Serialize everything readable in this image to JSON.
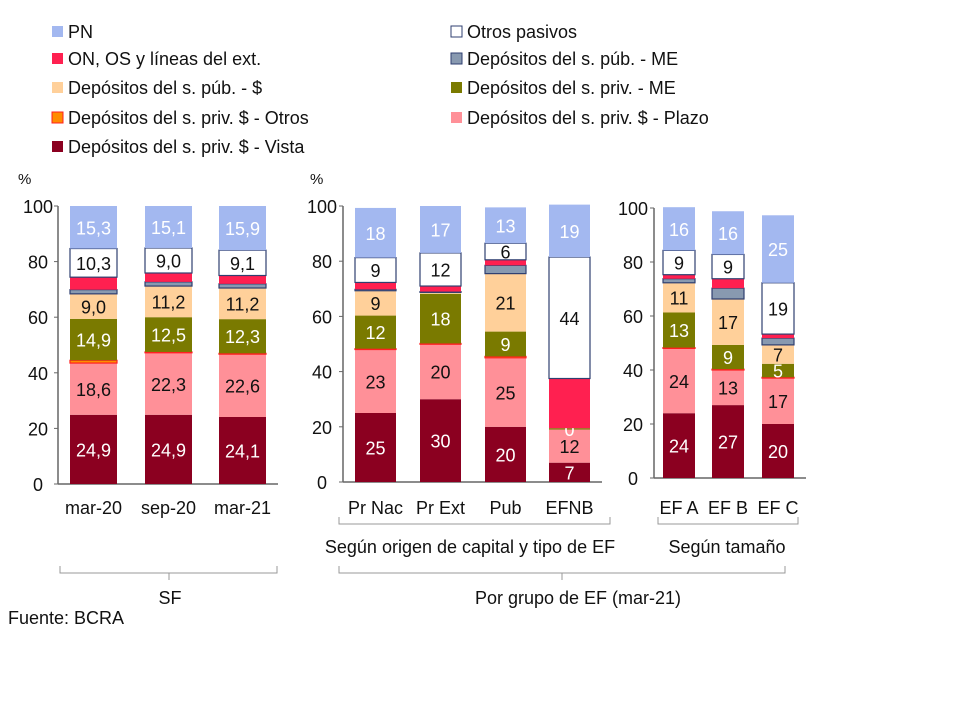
{
  "legend": [
    {
      "key": "pn",
      "label": "PN",
      "color": "#a3b8f0"
    },
    {
      "key": "otros_pasivos",
      "label": "Otros pasivos",
      "color": "#ffffff",
      "border": "#2f3f70"
    },
    {
      "key": "on",
      "label": "ON, OS y líneas del ext.",
      "color": "#ff2050"
    },
    {
      "key": "pub_me",
      "label": "Depósitos del s. púb. - ME",
      "color": "#8899b0",
      "border": "#2f3f70"
    },
    {
      "key": "pub_ars",
      "label": "Depósitos del s. púb. - $",
      "color": "#ffd09a"
    },
    {
      "key": "priv_me",
      "label": "Depósitos del s. priv. - ME",
      "color": "#7a7a00"
    },
    {
      "key": "priv_otros",
      "label": "Depósitos del s. priv. $ - Otros",
      "color": "#ff8c00",
      "border": "#ff2020"
    },
    {
      "key": "priv_plazo",
      "label": "Depósitos del s. priv. $ - Plazo",
      "color": "#ff9098"
    },
    {
      "key": "priv_vista",
      "label": "Depósitos del s. priv. $ - Vista",
      "color": "#8b0020"
    }
  ],
  "chart_data": [
    {
      "type": "bar",
      "stacked": true,
      "ylabel": "%",
      "ylim": [
        0,
        100
      ],
      "yticks": [
        0,
        20,
        40,
        60,
        80,
        100
      ],
      "stack_order": [
        "priv_vista",
        "priv_plazo",
        "priv_otros",
        "priv_me",
        "pub_ars",
        "pub_me",
        "on",
        "otros_pasivos",
        "pn"
      ],
      "categories": [
        "mar-20",
        "sep-20",
        "mar-21"
      ],
      "values": [
        [
          24.9,
          18.6,
          1.0,
          14.9,
          9.0,
          1.5,
          4.5,
          10.3,
          15.3
        ],
        [
          24.9,
          22.3,
          0.3,
          12.5,
          11.2,
          1.5,
          3.2,
          9.0,
          15.1
        ],
        [
          24.1,
          22.6,
          0.3,
          12.3,
          11.2,
          1.5,
          3.0,
          9.1,
          15.9
        ]
      ],
      "labels": [
        [
          "24,9",
          "18,6",
          null,
          "14,9",
          "9,0",
          null,
          null,
          "10,3",
          "15,3"
        ],
        [
          "24,9",
          "22,3",
          null,
          "12,5",
          "11,2",
          null,
          null,
          "9,0",
          "15,1"
        ],
        [
          "24,1",
          "22,6",
          null,
          "12,3",
          "11,2",
          null,
          null,
          "9,1",
          "15,9"
        ]
      ],
      "group_label": "SF"
    },
    {
      "type": "bar",
      "stacked": true,
      "ylabel": "%",
      "ylim": [
        0,
        100
      ],
      "yticks": [
        0,
        20,
        40,
        60,
        80,
        100
      ],
      "categories": [
        "Pr Nac",
        "Pr Ext",
        "Pub",
        "EFNB"
      ],
      "values": [
        [
          25,
          23,
          0.3,
          12,
          9,
          0.5,
          2.5,
          9,
          18
        ],
        [
          30,
          20,
          0.2,
          18,
          0.5,
          0.3,
          2,
          12,
          17
        ],
        [
          20,
          25,
          0.5,
          9,
          21,
          3,
          2,
          6,
          13
        ],
        [
          7,
          12,
          0,
          0.5,
          0,
          0,
          18,
          44,
          19
        ]
      ],
      "labels": [
        [
          "25",
          "23",
          null,
          "12",
          "9",
          null,
          null,
          "9",
          "18"
        ],
        [
          "30",
          "20",
          null,
          "18",
          null,
          null,
          null,
          "12",
          "17"
        ],
        [
          "20",
          "25",
          null,
          "9",
          "21",
          null,
          null,
          "6",
          "13"
        ],
        [
          "7",
          "12",
          null,
          "0",
          null,
          null,
          null,
          "44",
          "19"
        ]
      ],
      "sub_label": "Según origen de capital y tipo de EF"
    },
    {
      "type": "bar",
      "stacked": true,
      "ylim": [
        0,
        100
      ],
      "yticks": [
        0,
        20,
        40,
        60,
        80,
        100
      ],
      "categories": [
        "EF A",
        "EF B",
        "EF C"
      ],
      "values": [
        [
          24,
          24,
          0.3,
          13,
          11,
          1.5,
          1.5,
          9,
          16
        ],
        [
          27,
          13,
          0.3,
          9,
          17,
          4,
          3.5,
          9,
          16
        ],
        [
          20,
          17,
          0.3,
          5,
          7,
          2.5,
          1.5,
          19,
          25
        ]
      ],
      "labels": [
        [
          "24",
          "24",
          null,
          "13",
          "11",
          null,
          null,
          "9",
          "16"
        ],
        [
          "27",
          "13",
          null,
          "9",
          "17",
          null,
          null,
          "9",
          "16"
        ],
        [
          "20",
          "17",
          null,
          "5",
          "7",
          null,
          null,
          "19",
          "25"
        ]
      ],
      "sub_label": "Según tamaño"
    }
  ],
  "group_label_right": "Por grupo de EF (mar-21)",
  "source": "Fuente: BCRA"
}
